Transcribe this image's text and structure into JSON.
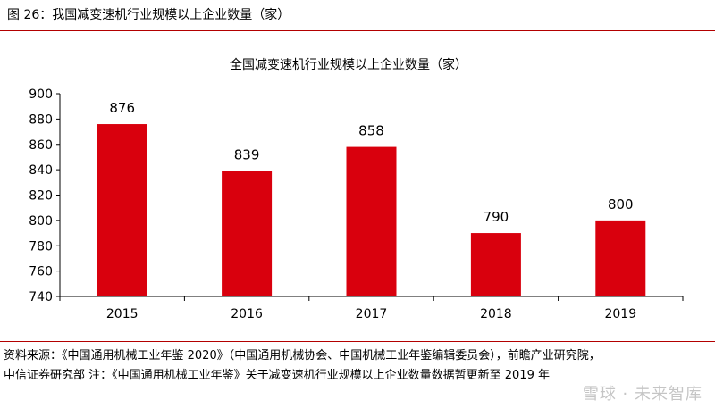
{
  "figure": {
    "label": "图 26：我国减变速机行业规模以上企业数量（家）"
  },
  "chart_data": {
    "type": "bar",
    "title": "全国减变速机行业规模以上企业数量（家）",
    "categories": [
      "2015",
      "2016",
      "2017",
      "2018",
      "2019"
    ],
    "values": [
      876,
      839,
      858,
      790,
      800
    ],
    "ylim": [
      740,
      900
    ],
    "yticks": [
      740,
      760,
      780,
      800,
      820,
      840,
      860,
      880,
      900
    ],
    "xlabel": "",
    "ylabel": "",
    "grid": false,
    "legend": "none",
    "bar_color": "#d9000d"
  },
  "source": {
    "line1": "资料来源：《中国通用机械工业年鉴 2020》（中国通用机械协会、中国机械工业年鉴编辑委员会），前瞻产业研究院，",
    "line2": "中信证券研究部 注：《中国通用机械工业年鉴》关于减变速机行业规模以上企业数量数据暂更新至 2019 年"
  },
  "watermark": {
    "text": "雪球 · 未来智库"
  }
}
